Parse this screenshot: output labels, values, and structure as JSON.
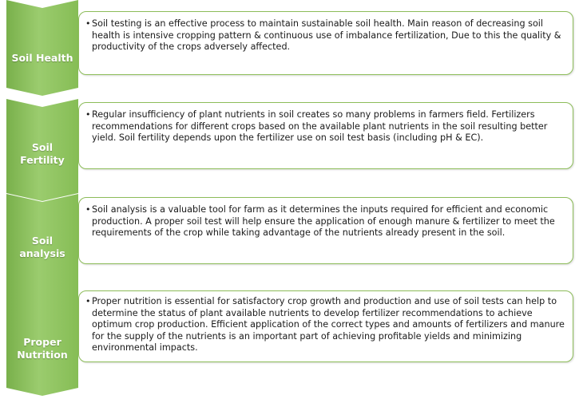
{
  "rows": [
    {
      "label": "Soil Health",
      "text": "Soil testing is an effective process to maintain sustainable soil health. Main reason of decreasing soil health is intensive cropping pattern & continuous use of imbalance fertilization, Due to this the quality & productivity of the crops adversely affected."
    },
    {
      "label": "Soil Fertility",
      "text": "Regular insufficiency of plant nutrients in soil creates so many problems in farmers field. Fertilizers recommendations for different crops based on the available plant nutrients in the soil resulting better yield. Soil fertility depends upon the fertilizer use on soil test basis (including pH & EC)."
    },
    {
      "label": "Soil analysis",
      "text": "Soil analysis is a valuable tool for farm as it determines the inputs required for efficient and economic production. A proper soil test will help ensure the application of enough manure & fertilizer to meet the requirements of the crop while taking advantage of the nutrients already present in the soil."
    },
    {
      "label": "Proper\nNutrition",
      "text": "Proper nutrition is essential for satisfactory crop growth and production and use of soil tests can help to determine the status of plant available nutrients to develop fertilizer recommendations to achieve optimum crop production. Efficient application of the correct types and amounts of fertilizers and manure for the supply of the nutrients is an important part of achieving profitable yields and minimizing environmental impacts."
    }
  ],
  "bullet_char": "•",
  "colors": {
    "chevron": "#8fc35f",
    "border": "#8dbd5a"
  }
}
